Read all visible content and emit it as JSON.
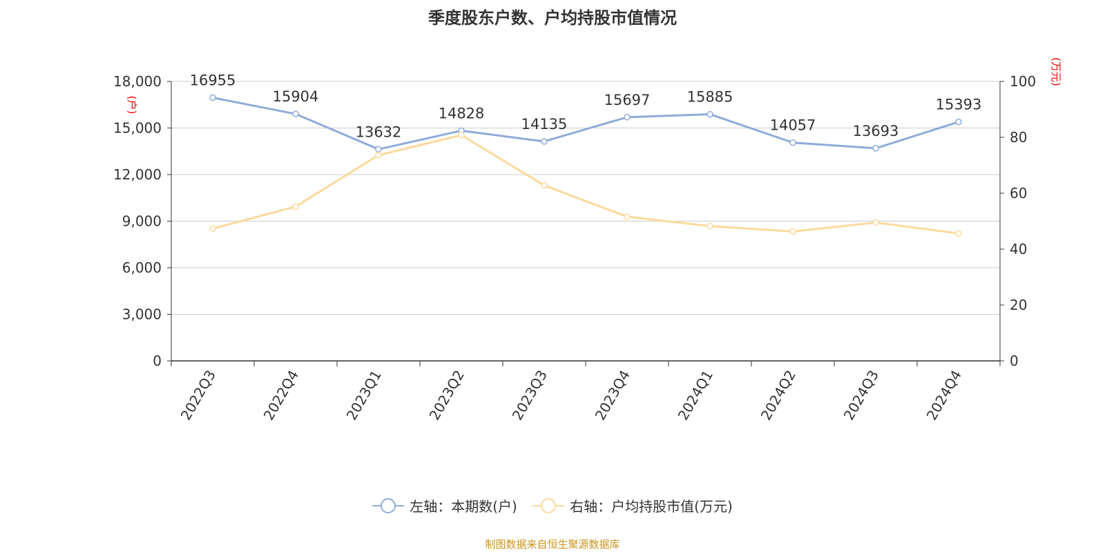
{
  "chart_data": {
    "type": "line",
    "title": "季度股东户数、户均持股市值情况",
    "categories": [
      "2022Q3",
      "2022Q4",
      "2023Q1",
      "2023Q2",
      "2023Q3",
      "2023Q4",
      "2024Q1",
      "2024Q2",
      "2024Q3",
      "2024Q4"
    ],
    "series": [
      {
        "name": "左轴：本期数(户)",
        "axis": "left",
        "color": "#8eabd9",
        "values": [
          16955,
          15904,
          13632,
          14828,
          14135,
          15697,
          15885,
          14057,
          13693,
          15393
        ],
        "show_labels": true
      },
      {
        "name": "右轴：户均持股市值(万元)",
        "axis": "right",
        "color": "#fdd99b",
        "values": [
          47.3,
          55.2,
          73.6,
          80.8,
          62.8,
          51.6,
          48.2,
          46.3,
          49.5,
          45.6
        ],
        "show_labels": false
      }
    ],
    "left_axis": {
      "label": "(户)",
      "min": 0,
      "max": 18000,
      "ticks": [
        "0",
        "3,000",
        "6,000",
        "9,000",
        "12,000",
        "15,000",
        "18,000"
      ]
    },
    "right_axis": {
      "label": "(万元)",
      "min": 0,
      "max": 100,
      "ticks": [
        "0",
        "20",
        "40",
        "60",
        "80",
        "100"
      ]
    },
    "grid": true,
    "legend_position": "bottom"
  },
  "source_text": "制图数据来自恒生聚源数据库",
  "colors": {
    "axis_label": "#e60000",
    "grid": "#cccccc",
    "text": "#333333",
    "source": "#c8941f"
  }
}
